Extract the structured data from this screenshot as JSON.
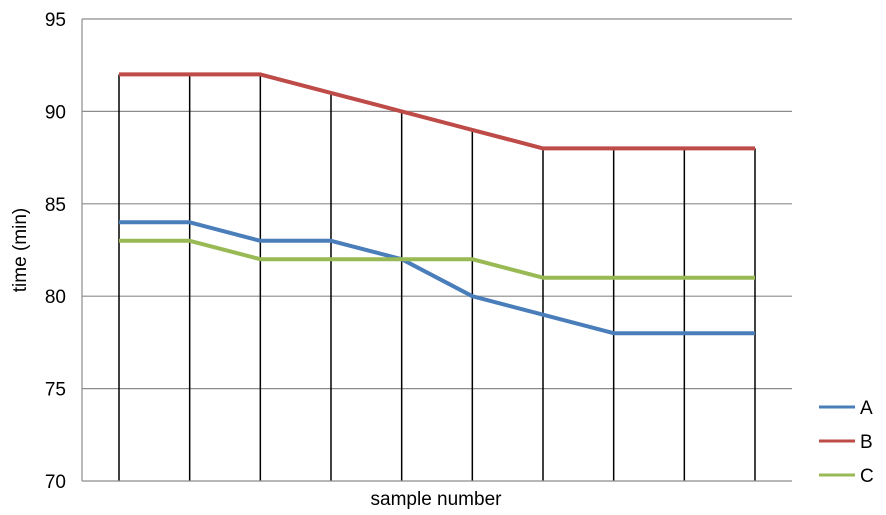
{
  "chart_data": {
    "type": "line",
    "title": "",
    "xlabel": "sample number",
    "ylabel": "time (min)",
    "ylim": [
      70,
      95
    ],
    "yticks": [
      70,
      75,
      80,
      85,
      90,
      95
    ],
    "x": [
      1,
      2,
      3,
      4,
      5,
      6,
      7,
      8,
      9,
      10
    ],
    "grid": "horizontal",
    "drop_lines": true,
    "legend_position": "bottom-right",
    "series": [
      {
        "name": "A",
        "color": "#4a7ebb",
        "values": [
          84,
          84,
          83,
          83,
          82,
          80,
          79,
          78,
          78,
          78
        ]
      },
      {
        "name": "B",
        "color": "#be4b48",
        "values": [
          92,
          92,
          92,
          91,
          90,
          89,
          88,
          88,
          88,
          88
        ]
      },
      {
        "name": "C",
        "color": "#98b954",
        "values": [
          83,
          83,
          82,
          82,
          82,
          82,
          81,
          81,
          81,
          81
        ]
      }
    ]
  }
}
